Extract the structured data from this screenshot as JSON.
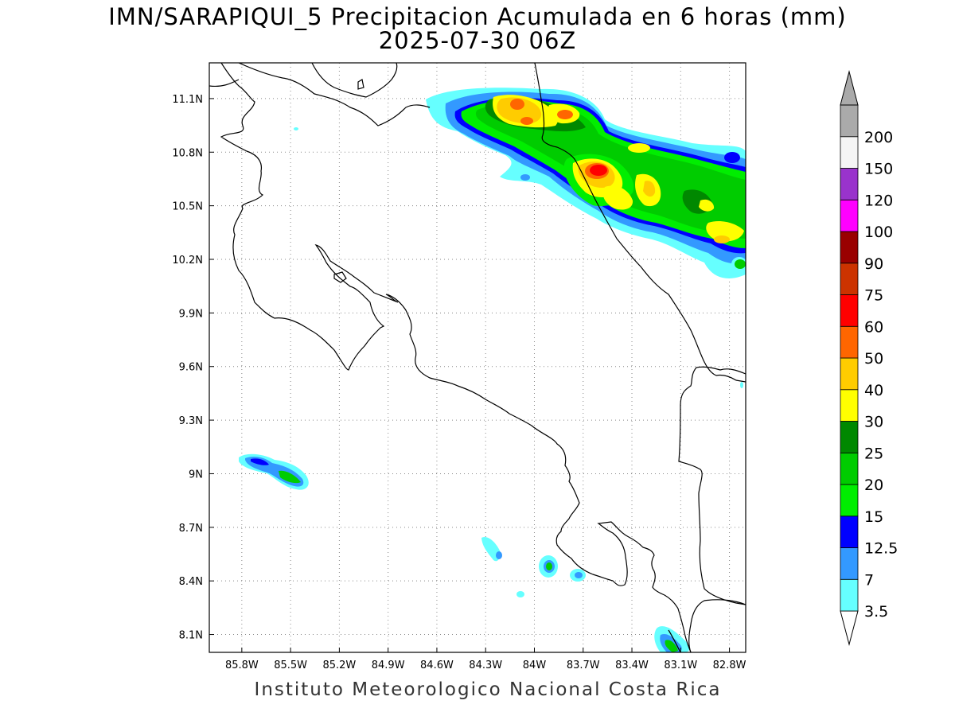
{
  "title_line1": "IMN/SARAPIQUI_5 Precipitacion Acumulada en 6 horas (mm)",
  "title_line2": "2025-07-30 06Z",
  "footer": "Instituto Meteorologico Nacional Costa Rica",
  "map": {
    "lat_range": [
      8.0,
      11.3
    ],
    "lon_range": [
      -86.0,
      -82.7
    ],
    "lat_ticks": [
      "8.1N",
      "8.4N",
      "8.7N",
      "9N",
      "9.3N",
      "9.6N",
      "9.9N",
      "10.2N",
      "10.5N",
      "10.8N",
      "11.1N"
    ],
    "lon_ticks": [
      "85.8W",
      "85.5W",
      "85.2W",
      "84.9W",
      "84.6W",
      "84.3W",
      "84W",
      "83.7W",
      "83.4W",
      "83.1W",
      "82.8W"
    ],
    "grid": "dotted"
  },
  "colorbar": {
    "labels": [
      "3.5",
      "7",
      "12.5",
      "15",
      "20",
      "25",
      "30",
      "40",
      "50",
      "60",
      "75",
      "90",
      "100",
      "120",
      "150",
      "200"
    ],
    "colors": [
      "#66ffff",
      "#3399ff",
      "#0000ff",
      "#00ee00",
      "#00cc00",
      "#008800",
      "#ffff00",
      "#ffcc00",
      "#ff6600",
      "#ff0000",
      "#cc3300",
      "#990000",
      "#ff00ff",
      "#9933cc",
      "#f5f5f5",
      "#aaaaaa"
    ]
  }
}
